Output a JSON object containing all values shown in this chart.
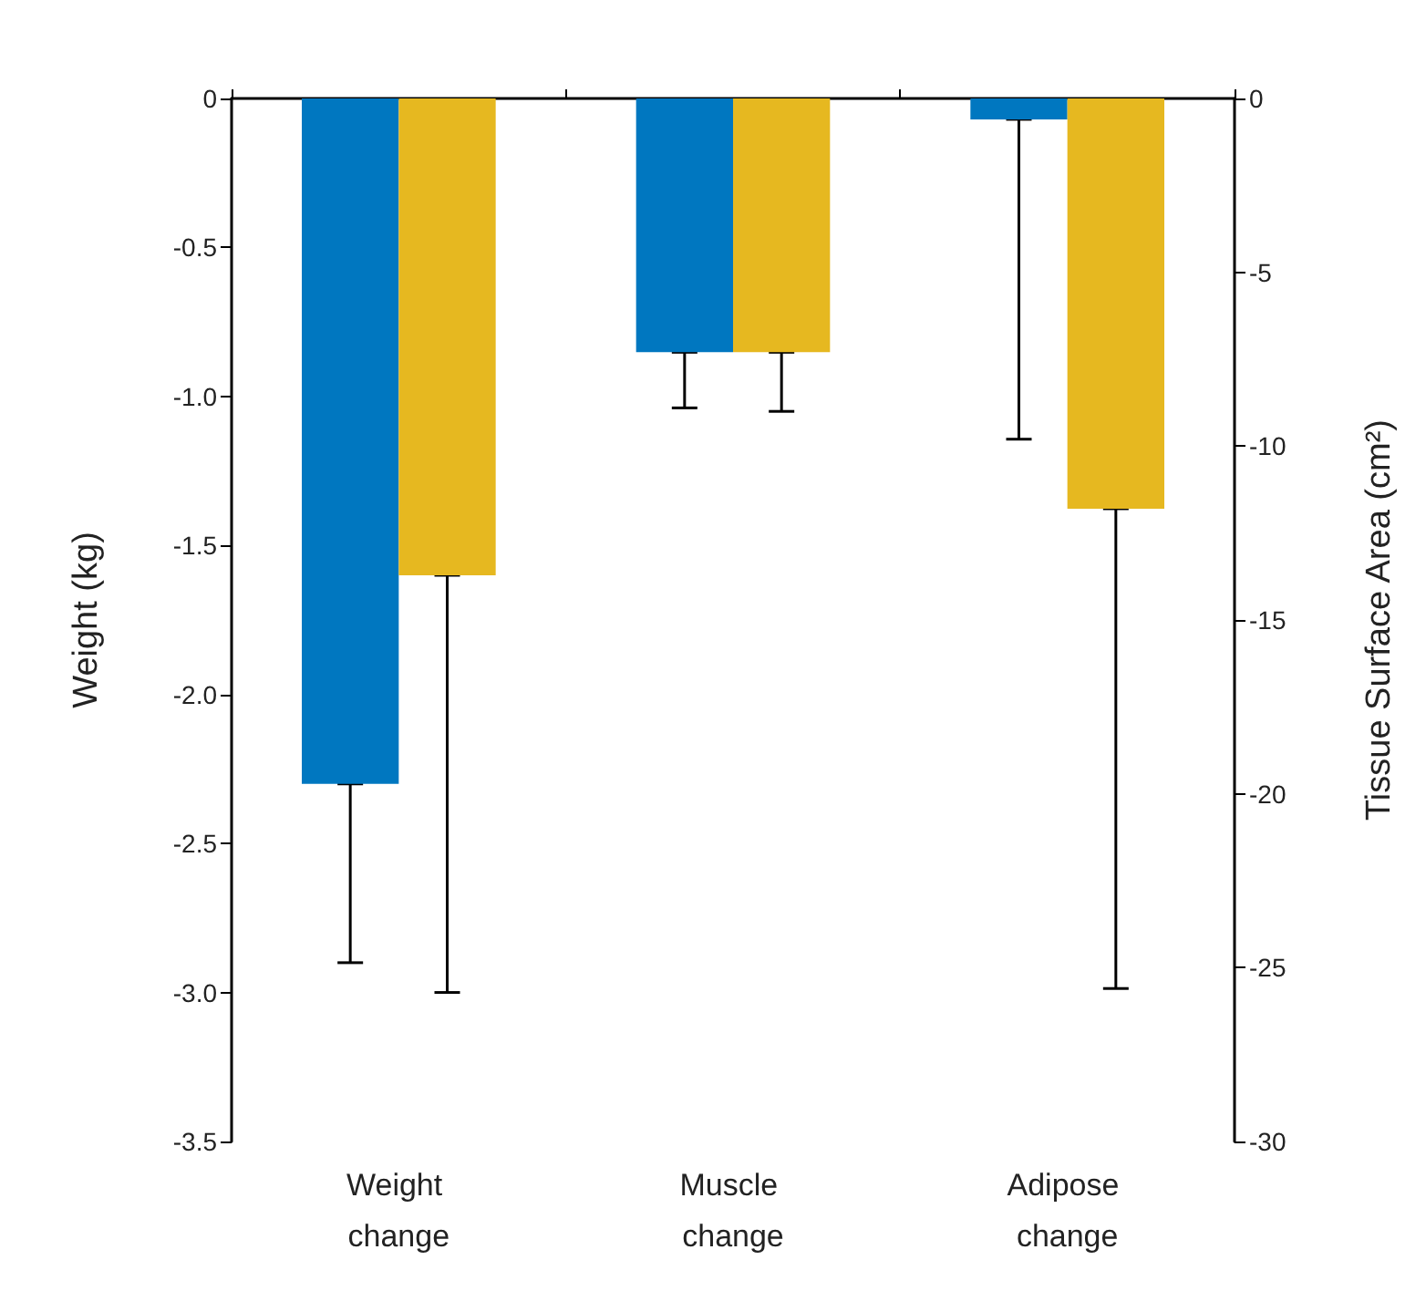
{
  "chart_data": {
    "type": "bar",
    "ylabel": "Weight (kg)",
    "y2label": "Tissue Surface Area (cm²)",
    "categories": [
      "Weight change",
      "Muscle change",
      "Adipose change"
    ],
    "ylim": [
      -3.5,
      0
    ],
    "yticks": [
      0,
      -0.5,
      {
        "value": -1,
        "label": "-1.0"
      },
      -1.5,
      {
        "value": -2,
        "label": "-2.0"
      },
      -2.5,
      {
        "value": -3,
        "label": "-3.0"
      },
      -3.5
    ],
    "y2lim": [
      -30,
      0
    ],
    "y2ticks": [
      0,
      -5,
      -10,
      -15,
      -20,
      -25,
      -30
    ],
    "series": [
      {
        "color": "#0077c0",
        "values": [
          -2.3,
          null,
          null
        ],
        "errors": [
          [
            -2.9,
            -2.3
          ],
          null,
          null
        ]
      },
      {
        "color": "#e6b820",
        "values": [
          -1.6,
          null,
          null
        ],
        "errors": [
          [
            -3.0,
            -1.6
          ],
          null,
          null
        ]
      },
      {
        "color": "#0077c0",
        "axis": "y2",
        "values": [
          null,
          -7.3,
          -0.6
        ],
        "errors": [
          null,
          [
            -8.9,
            -7.3
          ],
          [
            -9.8,
            -0.6
          ]
        ]
      },
      {
        "color": "#e6b820",
        "axis": "y2",
        "values": [
          null,
          -7.3,
          -11.8
        ],
        "errors": [
          null,
          [
            -9.0,
            -7.3
          ],
          [
            -25.6,
            -11.8
          ]
        ]
      }
    ],
    "grid": false
  }
}
